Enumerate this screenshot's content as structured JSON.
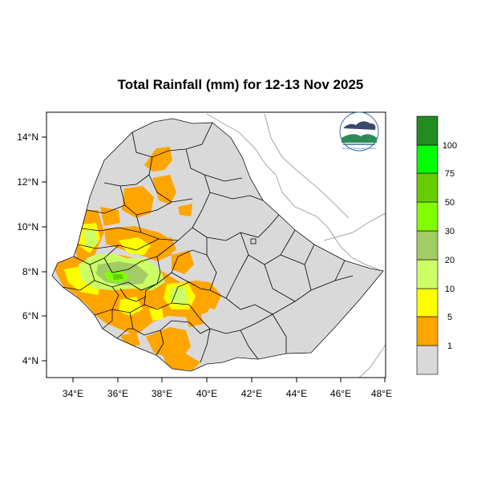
{
  "title": "Total Rainfall (mm) for 12-13 Nov 2025",
  "map": {
    "lon_ticks": [
      "34°E",
      "36°E",
      "38°E",
      "40°E",
      "42°E",
      "44°E",
      "46°E",
      "48°E"
    ],
    "lat_ticks": [
      "14°N",
      "12°N",
      "10°N",
      "8°N",
      "6°N",
      "4°N"
    ],
    "lon_range": [
      33.0,
      48.2
    ],
    "lat_range": [
      3.2,
      15.0
    ]
  },
  "colorbar": {
    "levels": [
      "1",
      "5",
      "10",
      "20",
      "30",
      "50",
      "75",
      "100"
    ],
    "colors": [
      "#d9d9d9",
      "#ffa500",
      "#ffff00",
      "#ccff66",
      "#a2cc66",
      "#80ff00",
      "#66cc00",
      "#00ff00",
      "#00cc00",
      "#228b22"
    ]
  },
  "colors": {
    "land": "#d9d9d9",
    "boundary": "#000000",
    "coast": "#a6a6a6"
  },
  "logo": {
    "caption": "Ethiopian Meteorology Institute"
  }
}
